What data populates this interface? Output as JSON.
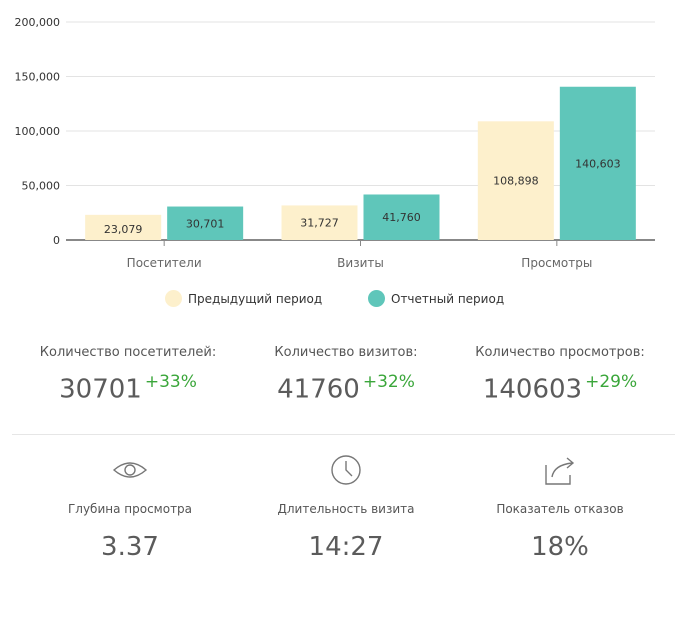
{
  "chart_data": {
    "type": "bar",
    "categories": [
      "Посетители",
      "Визиты",
      "Просмотры"
    ],
    "series": [
      {
        "name": "Предыдущий период",
        "values": [
          23079,
          31727,
          108898
        ],
        "color": "#fdf0cc"
      },
      {
        "name": "Отчетный период",
        "values": [
          30701,
          41760,
          140603
        ],
        "color": "#5fc6ba"
      }
    ],
    "data_labels": {
      "previous": [
        "23,079",
        "31,727",
        "108,898"
      ],
      "current": [
        "30,701",
        "41,760",
        "140,603"
      ]
    },
    "ylim": [
      0,
      200000
    ],
    "yticks": [
      {
        "value": 0,
        "label": "0"
      },
      {
        "value": 50000,
        "label": "50,000"
      },
      {
        "value": 100000,
        "label": "100,000"
      },
      {
        "value": 150000,
        "label": "150,000"
      },
      {
        "value": 200000,
        "label": "200,000"
      }
    ],
    "grid": true,
    "legend": "bottom",
    "title": "",
    "xlabel": "",
    "ylabel": ""
  },
  "legend": {
    "previous": {
      "label": "Предыдущий период",
      "color": "#fdf0cc"
    },
    "current": {
      "label": "Отчетный период",
      "color": "#5fc6ba"
    }
  },
  "stats": [
    {
      "label": "Количество посетителей:",
      "value": "30701",
      "delta": "+33%"
    },
    {
      "label": "Количество визитов:",
      "value": "41760",
      "delta": "+32%"
    },
    {
      "label": "Количество просмотров:",
      "value": "140603",
      "delta": "+29%"
    }
  ],
  "metrics": [
    {
      "icon": "eye-icon",
      "label": "Глубина просмотра",
      "value": "3.37"
    },
    {
      "icon": "clock-icon",
      "label": "Длительность визита",
      "value": "14:27"
    },
    {
      "icon": "share-icon",
      "label": "Показатель отказов",
      "value": "18%"
    }
  ]
}
